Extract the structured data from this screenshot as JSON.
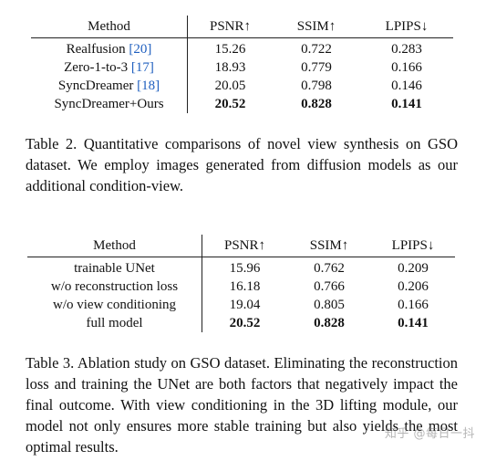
{
  "table2": {
    "headers": [
      "Method",
      "PSNR↑",
      "SSIM↑",
      "LPIPS↓"
    ],
    "rows": [
      {
        "method": "Realfusion ",
        "cite": "[20]",
        "psnr": "15.26",
        "ssim": "0.722",
        "lpips": "0.283"
      },
      {
        "method": "Zero-1-to-3 ",
        "cite": "[17]",
        "psnr": "18.93",
        "ssim": "0.779",
        "lpips": "0.166"
      },
      {
        "method": "SyncDreamer ",
        "cite": "[18]",
        "psnr": "20.05",
        "ssim": "0.798",
        "lpips": "0.146"
      },
      {
        "method": "SyncDreamer+Ours",
        "cite": "",
        "psnr": "20.52",
        "ssim": "0.828",
        "lpips": "0.141"
      }
    ],
    "caption": "Table 2. Quantitative comparisons of novel view synthesis on GSO dataset. We employ images generated from diffusion models as our additional condition-view."
  },
  "table3": {
    "headers": [
      "Method",
      "PSNR↑",
      "SSIM↑",
      "LPIPS↓"
    ],
    "rows": [
      {
        "method": "trainable UNet",
        "psnr": "15.96",
        "ssim": "0.762",
        "lpips": "0.209"
      },
      {
        "method": "w/o reconstruction loss",
        "psnr": "16.18",
        "ssim": "0.766",
        "lpips": "0.206"
      },
      {
        "method": "w/o view conditioning",
        "psnr": "19.04",
        "ssim": "0.805",
        "lpips": "0.166"
      },
      {
        "method": "full model",
        "psnr": "20.52",
        "ssim": "0.828",
        "lpips": "0.141"
      }
    ],
    "caption": "Table 3. Ablation study on GSO dataset. Eliminating the reconstruction loss and training the UNet are both factors that negatively impact the final outcome. With view conditioning in the 3D lifting module, our model not only ensures more stable training but also yields the most optimal results."
  },
  "watermark": "知乎 @每日一抖",
  "colors": {
    "citation": "#1f5fbf",
    "text": "#111111"
  }
}
